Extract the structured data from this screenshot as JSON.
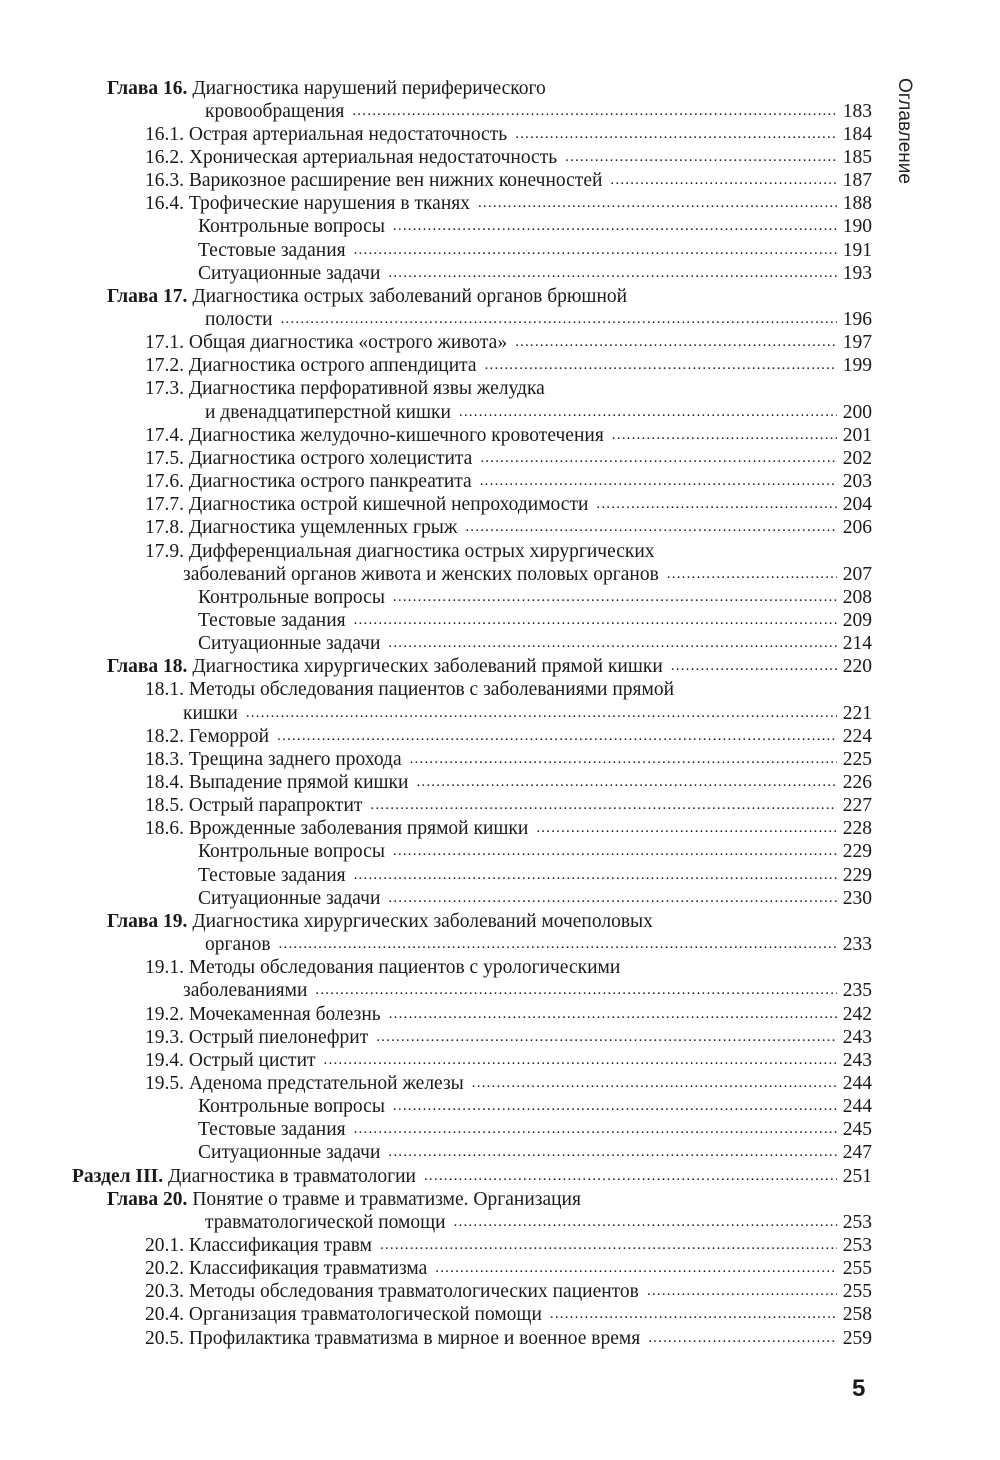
{
  "running_header": "Оглавление",
  "page_number": "5",
  "entries": [
    {
      "lv": "ch",
      "bold": "Глава 16.",
      "text": " Диагностика нарушений периферического"
    },
    {
      "lv": "chc",
      "text": "кровообращения",
      "page": "183"
    },
    {
      "lv": "sec",
      "text": "16.1. Острая артериальная недостаточность",
      "page": "184"
    },
    {
      "lv": "sec",
      "text": "16.2. Хроническая артериальная недостаточность",
      "page": "185"
    },
    {
      "lv": "sec",
      "text": "16.3. Варикозное расширение вен нижних конечностей",
      "page": "187"
    },
    {
      "lv": "sec",
      "text": "16.4. Трофические нарушения в тканях",
      "page": "188"
    },
    {
      "lv": "sub",
      "text": "Контрольные вопросы",
      "page": "190"
    },
    {
      "lv": "sub",
      "text": "Тестовые задания",
      "page": "191"
    },
    {
      "lv": "sub",
      "text": "Ситуационные задачи",
      "page": "193"
    },
    {
      "lv": "ch",
      "bold": "Глава 17.",
      "text": " Диагностика острых заболеваний органов брюшной"
    },
    {
      "lv": "chc",
      "text": "полости",
      "page": "196"
    },
    {
      "lv": "sec",
      "text": "17.1. Общая диагностика «острого живота»",
      "page": "197"
    },
    {
      "lv": "sec",
      "text": "17.2. Диагностика острого аппендицита",
      "page": "199"
    },
    {
      "lv": "sec",
      "text": "17.3. Диагностика перфоративной язвы желудка"
    },
    {
      "lv": "chc",
      "text": "и двенадцатиперстной кишки",
      "page": "200"
    },
    {
      "lv": "sec",
      "text": "17.4. Диагностика желудочно-кишечного кровотечения",
      "page": "201"
    },
    {
      "lv": "sec",
      "text": "17.5. Диагностика острого холецистита",
      "page": "202"
    },
    {
      "lv": "sec",
      "text": "17.6. Диагностика острого панкреатита",
      "page": "203"
    },
    {
      "lv": "sec",
      "text": "17.7. Диагностика острой кишечной непроходимости",
      "page": "204"
    },
    {
      "lv": "sec",
      "text": "17.8. Диагностика ущемленных грыж",
      "page": "206"
    },
    {
      "lv": "sec",
      "text": "17.9. Дифференциальная диагностика острых хирургических"
    },
    {
      "lv": "secc",
      "text": "заболеваний органов живота и женских половых органов",
      "page": "207"
    },
    {
      "lv": "sub",
      "text": "Контрольные вопросы",
      "page": "208"
    },
    {
      "lv": "sub",
      "text": "Тестовые задания",
      "page": "209"
    },
    {
      "lv": "sub",
      "text": "Ситуационные задачи",
      "page": "214"
    },
    {
      "lv": "ch",
      "bold": "Глава 18.",
      "text": " Диагностика хирургических заболеваний прямой кишки",
      "page": "220"
    },
    {
      "lv": "sec",
      "text": "18.1. Методы обследования пациентов с заболеваниями прямой"
    },
    {
      "lv": "secc",
      "text": "кишки",
      "page": "221"
    },
    {
      "lv": "sec",
      "text": "18.2. Геморрой",
      "page": "224"
    },
    {
      "lv": "sec",
      "text": "18.3. Трещина заднего прохода",
      "page": "225"
    },
    {
      "lv": "sec",
      "text": "18.4. Выпадение прямой кишки",
      "page": "226"
    },
    {
      "lv": "sec",
      "text": "18.5. Острый парапроктит",
      "page": "227"
    },
    {
      "lv": "sec",
      "text": "18.6. Врожденные заболевания прямой кишки",
      "page": "228"
    },
    {
      "lv": "sub",
      "text": "Контрольные вопросы",
      "page": "229"
    },
    {
      "lv": "sub",
      "text": "Тестовые задания",
      "page": "229"
    },
    {
      "lv": "sub",
      "text": "Ситуационные задачи",
      "page": "230"
    },
    {
      "lv": "ch",
      "bold": "Глава 19.",
      "text": " Диагностика хирургических заболеваний мочеполовых"
    },
    {
      "lv": "chc",
      "text": "органов",
      "page": "233"
    },
    {
      "lv": "sec",
      "text": "19.1. Методы обследования пациентов с урологическими"
    },
    {
      "lv": "secc",
      "text": "заболеваниями",
      "page": "235"
    },
    {
      "lv": "sec",
      "text": "19.2. Мочекаменная болезнь",
      "page": "242"
    },
    {
      "lv": "sec",
      "text": "19.3. Острый пиелонефрит",
      "page": "243"
    },
    {
      "lv": "sec",
      "text": "19.4. Острый цистит",
      "page": "243"
    },
    {
      "lv": "sec",
      "text": "19.5. Аденома предстательной железы",
      "page": "244"
    },
    {
      "lv": "sub",
      "text": "Контрольные вопросы",
      "page": "244"
    },
    {
      "lv": "sub",
      "text": "Тестовые задания",
      "page": "245"
    },
    {
      "lv": "sub",
      "text": "Ситуационные задачи",
      "page": "247"
    },
    {
      "lv": "part",
      "bold": "Раздел III.",
      "text": " Диагностика в травматологии",
      "page": "251"
    },
    {
      "lv": "ch",
      "bold": "Глава 20.",
      "text": " Понятие о травме и травматизме. Организация"
    },
    {
      "lv": "chc",
      "text": "травматологической помощи",
      "page": "253"
    },
    {
      "lv": "sec",
      "text": "20.1. Классификация травм",
      "page": "253"
    },
    {
      "lv": "sec",
      "text": "20.2. Классификация травматизма",
      "page": "255"
    },
    {
      "lv": "sec",
      "text": "20.3. Методы обследования травматологических пациентов",
      "page": "255"
    },
    {
      "lv": "sec",
      "text": "20.4. Организация травматологической помощи",
      "page": "258"
    },
    {
      "lv": "sec",
      "text": "20.5. Профилактика травматизма в мирное и военное время",
      "page": "259"
    }
  ]
}
